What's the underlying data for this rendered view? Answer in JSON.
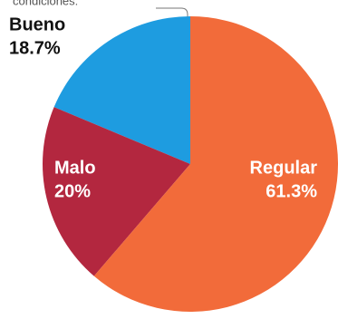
{
  "chart_data": {
    "type": "pie",
    "annotation": "condiciones:",
    "categories": [
      "Bueno",
      "Malo",
      "Regular"
    ],
    "values": [
      18.7,
      20,
      61.3
    ],
    "value_labels": [
      "18.7%",
      "20%",
      "61.3%"
    ],
    "colors": [
      "#1e9ce0",
      "#b3273f",
      "#f26b3a"
    ]
  }
}
